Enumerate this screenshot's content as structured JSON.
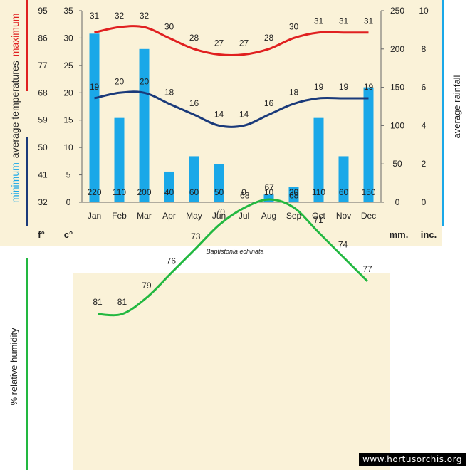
{
  "chart_data": [
    {
      "type": "bar+line",
      "title": "",
      "categories": [
        "Jan",
        "Feb",
        "Mar",
        "Apr",
        "May",
        "Jun",
        "Jul",
        "Aug",
        "Sep",
        "Oct",
        "Nov",
        "Dec"
      ],
      "rainfall_mm": [
        220,
        110,
        200,
        40,
        60,
        50,
        0,
        10,
        20,
        110,
        60,
        150
      ],
      "max_temp_c": [
        31,
        32,
        32,
        30,
        28,
        27,
        27,
        28,
        30,
        31,
        31,
        31
      ],
      "min_temp_c": [
        19,
        20,
        20,
        18,
        16,
        14,
        14,
        16,
        18,
        19,
        19,
        19
      ],
      "temp_c_range": [
        0,
        35
      ],
      "rain_mm_range": [
        0,
        250
      ],
      "left_axis_f_ticks": [
        "32",
        "41",
        "50",
        "59",
        "68",
        "77",
        "86",
        "95"
      ],
      "left_axis_c_ticks": [
        "0",
        "5",
        "10",
        "15",
        "20",
        "25",
        "30",
        "35"
      ],
      "right_axis_mm_ticks": [
        "0",
        "50",
        "100",
        "150",
        "200",
        "250"
      ],
      "right_axis_inch_ticks": [
        "0",
        "2",
        "4",
        "6",
        "8",
        "10"
      ],
      "unit_f": "f°",
      "unit_c": "c°",
      "unit_mm": "mm.",
      "unit_inch": "inc.",
      "label_max_word": "maximum",
      "label_min_word": "minimum",
      "label_avg_temps": "average  temperatures",
      "label_avg_rain": "average rainfall",
      "species": "Baptistonia echinata",
      "colors": {
        "max": "#e02020",
        "min": "#1a3a7a",
        "rain": "#1aa8e8",
        "panel": "#faf2d8"
      }
    },
    {
      "type": "line",
      "categories": [
        "Jan",
        "Feb",
        "Mar",
        "Apr",
        "May",
        "Jun",
        "Jul",
        "Aug",
        "Sep",
        "Oct",
        "Nov",
        "Dec"
      ],
      "humidity_pct": [
        81,
        81,
        79,
        76,
        73,
        70,
        68,
        67,
        68,
        71,
        74,
        77
      ],
      "ylabel": "%  relative humidity",
      "colors": {
        "line": "#22b840",
        "panel": "#faf2d8"
      }
    }
  ],
  "watermark": "www.hortusorchis.org"
}
